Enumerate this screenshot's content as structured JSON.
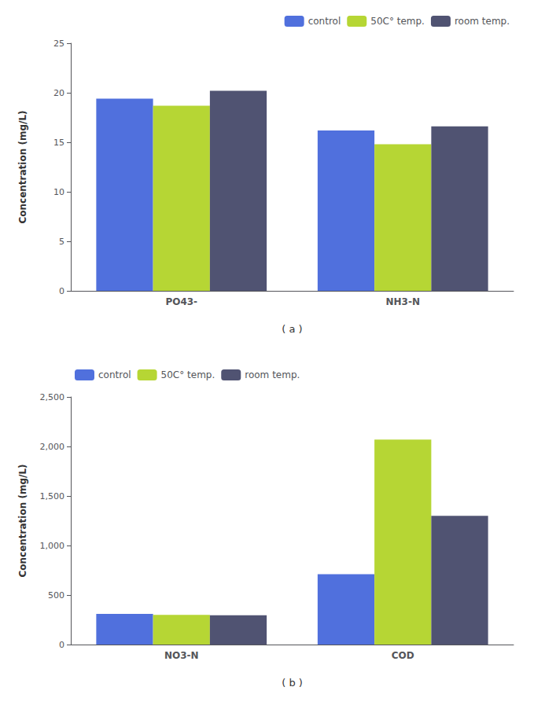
{
  "chart_data": [
    {
      "type": "bar",
      "categories": [
        "PO43-",
        "NH3-N"
      ],
      "series": [
        {
          "name": "control",
          "values": [
            19.4,
            16.2
          ]
        },
        {
          "name": "50C° temp.",
          "values": [
            18.7,
            14.8
          ]
        },
        {
          "name": "room temp.",
          "values": [
            20.2,
            16.6
          ]
        }
      ],
      "ylabel": "Concentration (mg/L)",
      "xlabel": "( a )",
      "ylim": [
        0,
        25
      ],
      "yticks": [
        0,
        5,
        10,
        15,
        20,
        25
      ],
      "grid": false,
      "legend": "upper right"
    },
    {
      "type": "bar",
      "categories": [
        "NO3-N",
        "COD"
      ],
      "series": [
        {
          "name": "control",
          "values": [
            310,
            710
          ]
        },
        {
          "name": "50C° temp.",
          "values": [
            300,
            2070
          ]
        },
        {
          "name": "room temp.",
          "values": [
            295,
            1300
          ]
        }
      ],
      "ylabel": "Concentration (mg/L)",
      "xlabel": "( b )",
      "ylim": [
        0,
        2500
      ],
      "yticks": [
        0,
        500,
        1000,
        1500,
        2000,
        2500
      ],
      "grid": false,
      "legend": "upper left"
    }
  ]
}
